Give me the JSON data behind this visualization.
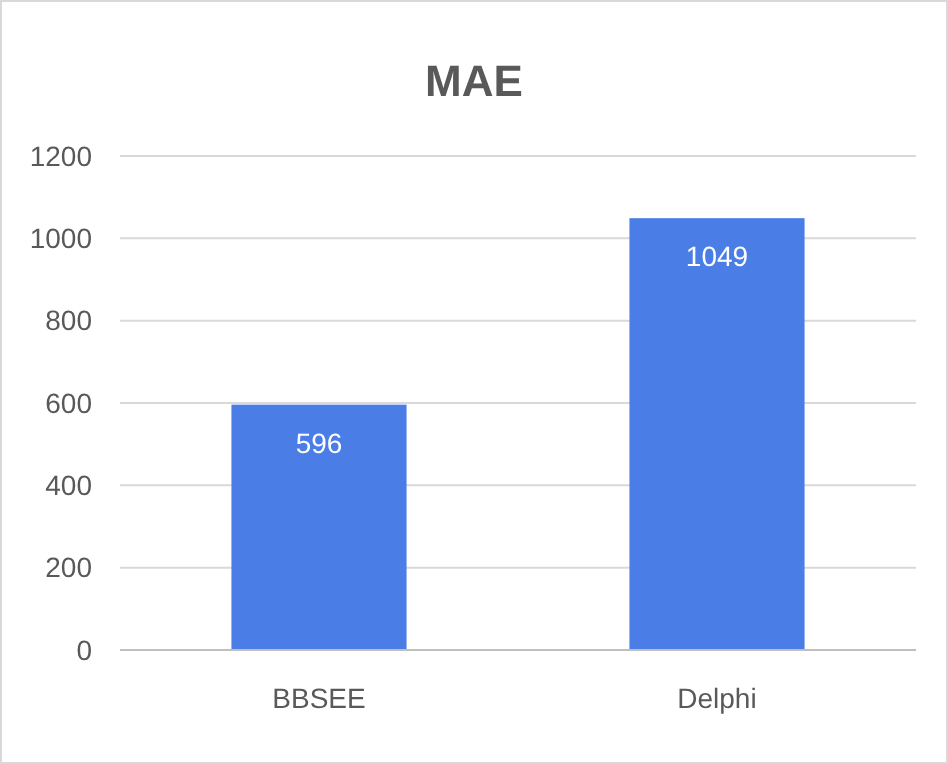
{
  "chart_data": {
    "type": "bar",
    "title": "MAE",
    "categories": [
      "BBSEE",
      "Delphi"
    ],
    "values": [
      596,
      1049
    ],
    "color": "#4a7ee6",
    "ylim": [
      0,
      1200
    ],
    "yticks": [
      0,
      200,
      400,
      600,
      800,
      1000,
      1200
    ],
    "grid": "y",
    "data_labels": true
  }
}
